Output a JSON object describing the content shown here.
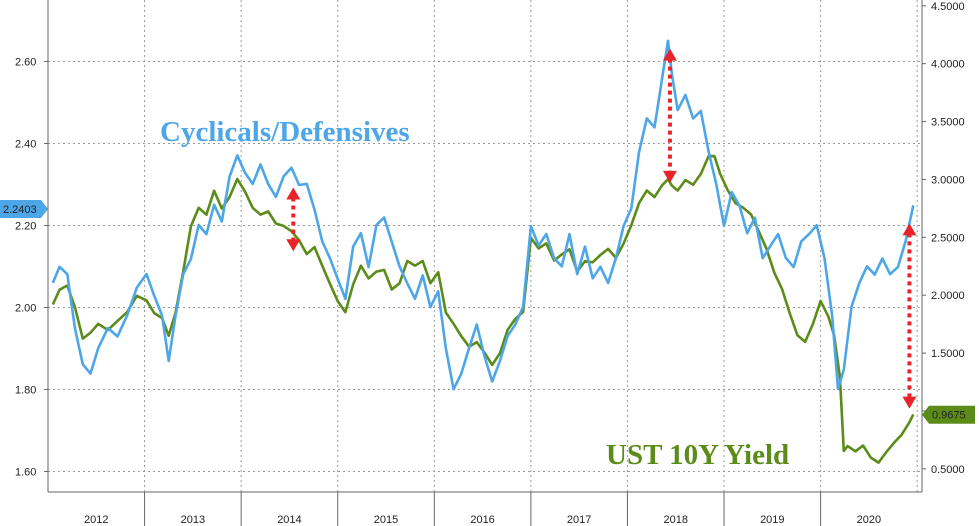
{
  "chart_data": {
    "type": "line",
    "title": "",
    "xlabel": "",
    "ylabel_left": "",
    "ylabel_right": "",
    "x_tick_labels": [
      "2012",
      "2013",
      "2014",
      "2015",
      "2016",
      "2017",
      "2018",
      "2019",
      "2020"
    ],
    "left_axis": {
      "ticks": [
        "1.60",
        "1.80",
        "2.00",
        "2.20",
        "2.40",
        "2.60"
      ],
      "tick_values": [
        1.6,
        1.8,
        2.0,
        2.2,
        2.4,
        2.6
      ],
      "range": [
        1.55,
        2.75
      ],
      "last_value_label": "2.2403",
      "last_value": 2.2403,
      "last_value_color": "#4da6e8"
    },
    "right_axis": {
      "ticks": [
        "0.5000",
        "1.0000",
        "1.5000",
        "2.0000",
        "2.5000",
        "3.0000",
        "3.5000",
        "4.0000",
        "4.5000"
      ],
      "tick_values": [
        0.5,
        1.0,
        1.5,
        2.0,
        2.5,
        3.0,
        3.5,
        4.0,
        4.5
      ],
      "range": [
        0.3,
        4.55
      ],
      "last_value_label": "0.9675",
      "last_value": 0.9675,
      "last_value_color": "#5b8c1a"
    },
    "grid": true,
    "series": [
      {
        "name": "Cyclicals/Defensives",
        "axis": "left",
        "color": "#4da6e8",
        "points": [
          [
            2011.55,
            2.06
          ],
          [
            2011.62,
            2.1
          ],
          [
            2011.7,
            2.08
          ],
          [
            2011.78,
            1.95
          ],
          [
            2011.86,
            1.86
          ],
          [
            2011.94,
            1.84
          ],
          [
            2012.02,
            1.9
          ],
          [
            2012.12,
            1.95
          ],
          [
            2012.22,
            1.93
          ],
          [
            2012.32,
            1.98
          ],
          [
            2012.42,
            2.05
          ],
          [
            2012.52,
            2.08
          ],
          [
            2012.6,
            2.03
          ],
          [
            2012.68,
            1.98
          ],
          [
            2012.75,
            1.87
          ],
          [
            2012.82,
            1.98
          ],
          [
            2012.9,
            2.08
          ],
          [
            2012.98,
            2.12
          ],
          [
            2013.06,
            2.2
          ],
          [
            2013.14,
            2.18
          ],
          [
            2013.22,
            2.25
          ],
          [
            2013.3,
            2.21
          ],
          [
            2013.38,
            2.32
          ],
          [
            2013.46,
            2.37
          ],
          [
            2013.54,
            2.33
          ],
          [
            2013.62,
            2.3
          ],
          [
            2013.7,
            2.35
          ],
          [
            2013.78,
            2.3
          ],
          [
            2013.86,
            2.27
          ],
          [
            2013.94,
            2.32
          ],
          [
            2014.02,
            2.34
          ],
          [
            2014.1,
            2.3
          ],
          [
            2014.18,
            2.3
          ],
          [
            2014.26,
            2.24
          ],
          [
            2014.34,
            2.16
          ],
          [
            2014.42,
            2.12
          ],
          [
            2014.5,
            2.07
          ],
          [
            2014.58,
            2.02
          ],
          [
            2014.66,
            2.15
          ],
          [
            2014.74,
            2.18
          ],
          [
            2014.82,
            2.1
          ],
          [
            2014.9,
            2.2
          ],
          [
            2014.98,
            2.22
          ],
          [
            2015.06,
            2.16
          ],
          [
            2015.14,
            2.1
          ],
          [
            2015.22,
            2.06
          ],
          [
            2015.3,
            2.02
          ],
          [
            2015.38,
            2.08
          ],
          [
            2015.46,
            2.0
          ],
          [
            2015.54,
            2.04
          ],
          [
            2015.62,
            1.9
          ],
          [
            2015.7,
            1.8
          ],
          [
            2015.78,
            1.84
          ],
          [
            2015.86,
            1.9
          ],
          [
            2015.94,
            1.96
          ],
          [
            2016.02,
            1.88
          ],
          [
            2016.1,
            1.82
          ],
          [
            2016.18,
            1.87
          ],
          [
            2016.26,
            1.93
          ],
          [
            2016.34,
            1.96
          ],
          [
            2016.42,
            2.0
          ],
          [
            2016.5,
            2.2
          ],
          [
            2016.58,
            2.15
          ],
          [
            2016.66,
            2.18
          ],
          [
            2016.74,
            2.12
          ],
          [
            2016.82,
            2.1
          ],
          [
            2016.9,
            2.18
          ],
          [
            2016.98,
            2.08
          ],
          [
            2017.06,
            2.15
          ],
          [
            2017.14,
            2.07
          ],
          [
            2017.22,
            2.1
          ],
          [
            2017.3,
            2.06
          ],
          [
            2017.38,
            2.12
          ],
          [
            2017.46,
            2.2
          ],
          [
            2017.54,
            2.24
          ],
          [
            2017.62,
            2.38
          ],
          [
            2017.7,
            2.46
          ],
          [
            2017.78,
            2.44
          ],
          [
            2017.86,
            2.56
          ],
          [
            2017.92,
            2.65
          ],
          [
            2017.96,
            2.57
          ],
          [
            2018.02,
            2.48
          ],
          [
            2018.1,
            2.52
          ],
          [
            2018.18,
            2.46
          ],
          [
            2018.26,
            2.48
          ],
          [
            2018.34,
            2.38
          ],
          [
            2018.42,
            2.3
          ],
          [
            2018.5,
            2.2
          ],
          [
            2018.58,
            2.28
          ],
          [
            2018.66,
            2.25
          ],
          [
            2018.74,
            2.18
          ],
          [
            2018.82,
            2.22
          ],
          [
            2018.9,
            2.12
          ],
          [
            2018.98,
            2.15
          ],
          [
            2019.06,
            2.18
          ],
          [
            2019.14,
            2.12
          ],
          [
            2019.22,
            2.1
          ],
          [
            2019.3,
            2.16
          ],
          [
            2019.38,
            2.18
          ],
          [
            2019.46,
            2.2
          ],
          [
            2019.54,
            2.12
          ],
          [
            2019.62,
            1.98
          ],
          [
            2019.68,
            1.8
          ],
          [
            2019.74,
            1.85
          ],
          [
            2019.82,
            2.0
          ],
          [
            2019.9,
            2.06
          ],
          [
            2019.98,
            2.1
          ],
          [
            2020.06,
            2.08
          ],
          [
            2020.14,
            2.12
          ],
          [
            2020.22,
            2.08
          ],
          [
            2020.3,
            2.1
          ],
          [
            2020.38,
            2.16
          ],
          [
            2020.46,
            2.25
          ]
        ]
      },
      {
        "name": "UST 10Y Yield",
        "axis": "right",
        "color": "#5b8c1a",
        "points": [
          [
            2011.55,
            1.92
          ],
          [
            2011.62,
            2.05
          ],
          [
            2011.7,
            2.08
          ],
          [
            2011.78,
            1.9
          ],
          [
            2011.86,
            1.62
          ],
          [
            2011.94,
            1.68
          ],
          [
            2012.02,
            1.75
          ],
          [
            2012.12,
            1.7
          ],
          [
            2012.22,
            1.78
          ],
          [
            2012.32,
            1.85
          ],
          [
            2012.42,
            2.0
          ],
          [
            2012.52,
            1.95
          ],
          [
            2012.6,
            1.85
          ],
          [
            2012.68,
            1.8
          ],
          [
            2012.75,
            1.65
          ],
          [
            2012.82,
            1.85
          ],
          [
            2012.9,
            2.2
          ],
          [
            2012.98,
            2.6
          ],
          [
            2013.06,
            2.75
          ],
          [
            2013.14,
            2.7
          ],
          [
            2013.22,
            2.9
          ],
          [
            2013.3,
            2.75
          ],
          [
            2013.38,
            2.85
          ],
          [
            2013.46,
            3.0
          ],
          [
            2013.54,
            2.9
          ],
          [
            2013.62,
            2.75
          ],
          [
            2013.7,
            2.7
          ],
          [
            2013.78,
            2.72
          ],
          [
            2013.86,
            2.62
          ],
          [
            2013.94,
            2.6
          ],
          [
            2014.02,
            2.55
          ],
          [
            2014.1,
            2.48
          ],
          [
            2014.18,
            2.35
          ],
          [
            2014.26,
            2.42
          ],
          [
            2014.34,
            2.25
          ],
          [
            2014.42,
            2.1
          ],
          [
            2014.5,
            1.95
          ],
          [
            2014.58,
            1.85
          ],
          [
            2014.66,
            2.1
          ],
          [
            2014.74,
            2.25
          ],
          [
            2014.82,
            2.15
          ],
          [
            2014.9,
            2.2
          ],
          [
            2014.98,
            2.22
          ],
          [
            2015.06,
            2.05
          ],
          [
            2015.14,
            2.1
          ],
          [
            2015.22,
            2.3
          ],
          [
            2015.3,
            2.25
          ],
          [
            2015.38,
            2.3
          ],
          [
            2015.46,
            2.1
          ],
          [
            2015.54,
            2.2
          ],
          [
            2015.62,
            1.85
          ],
          [
            2015.7,
            1.75
          ],
          [
            2015.78,
            1.65
          ],
          [
            2015.86,
            1.55
          ],
          [
            2015.94,
            1.6
          ],
          [
            2016.02,
            1.5
          ],
          [
            2016.1,
            1.4
          ],
          [
            2016.18,
            1.5
          ],
          [
            2016.26,
            1.7
          ],
          [
            2016.34,
            1.8
          ],
          [
            2016.42,
            1.85
          ],
          [
            2016.5,
            2.5
          ],
          [
            2016.58,
            2.4
          ],
          [
            2016.66,
            2.45
          ],
          [
            2016.74,
            2.3
          ],
          [
            2016.82,
            2.35
          ],
          [
            2016.9,
            2.4
          ],
          [
            2016.98,
            2.2
          ],
          [
            2017.06,
            2.3
          ],
          [
            2017.14,
            2.28
          ],
          [
            2017.22,
            2.35
          ],
          [
            2017.3,
            2.4
          ],
          [
            2017.38,
            2.32
          ],
          [
            2017.46,
            2.45
          ],
          [
            2017.54,
            2.6
          ],
          [
            2017.62,
            2.8
          ],
          [
            2017.7,
            2.9
          ],
          [
            2017.78,
            2.85
          ],
          [
            2017.86,
            2.95
          ],
          [
            2017.92,
            3.0
          ],
          [
            2017.96,
            2.95
          ],
          [
            2018.02,
            2.9
          ],
          [
            2018.1,
            3.0
          ],
          [
            2018.18,
            2.95
          ],
          [
            2018.26,
            3.05
          ],
          [
            2018.34,
            3.2
          ],
          [
            2018.4,
            3.2
          ],
          [
            2018.46,
            3.05
          ],
          [
            2018.54,
            2.9
          ],
          [
            2018.62,
            2.8
          ],
          [
            2018.7,
            2.75
          ],
          [
            2018.78,
            2.7
          ],
          [
            2018.86,
            2.55
          ],
          [
            2018.94,
            2.4
          ],
          [
            2019.02,
            2.2
          ],
          [
            2019.1,
            2.05
          ],
          [
            2019.18,
            1.85
          ],
          [
            2019.26,
            1.65
          ],
          [
            2019.34,
            1.6
          ],
          [
            2019.42,
            1.75
          ],
          [
            2019.5,
            1.95
          ],
          [
            2019.58,
            1.82
          ],
          [
            2019.64,
            1.65
          ],
          [
            2019.7,
            1.3
          ],
          [
            2019.74,
            0.65
          ],
          [
            2019.78,
            0.7
          ],
          [
            2019.86,
            0.65
          ],
          [
            2019.94,
            0.7
          ],
          [
            2020.02,
            0.6
          ],
          [
            2020.1,
            0.55
          ],
          [
            2020.18,
            0.65
          ],
          [
            2020.26,
            0.72
          ],
          [
            2020.34,
            0.8
          ],
          [
            2020.42,
            0.9
          ],
          [
            2020.46,
            0.97
          ]
        ]
      }
    ],
    "annotations": [
      {
        "text": "Cyclicals/Defensives",
        "color": "#4da6e8"
      },
      {
        "text": "UST 10Y Yield",
        "color": "#5b8c1a"
      }
    ],
    "arrows": [
      {
        "x": 2014.04,
        "y_top": 2.93,
        "y_bottom": 2.38,
        "axis": "right"
      },
      {
        "x": 2017.94,
        "y_top": 4.13,
        "y_bottom": 2.97,
        "axis": "right"
      },
      {
        "x": 2020.42,
        "y_top": 2.62,
        "y_bottom": 1.02,
        "axis": "right"
      }
    ]
  }
}
